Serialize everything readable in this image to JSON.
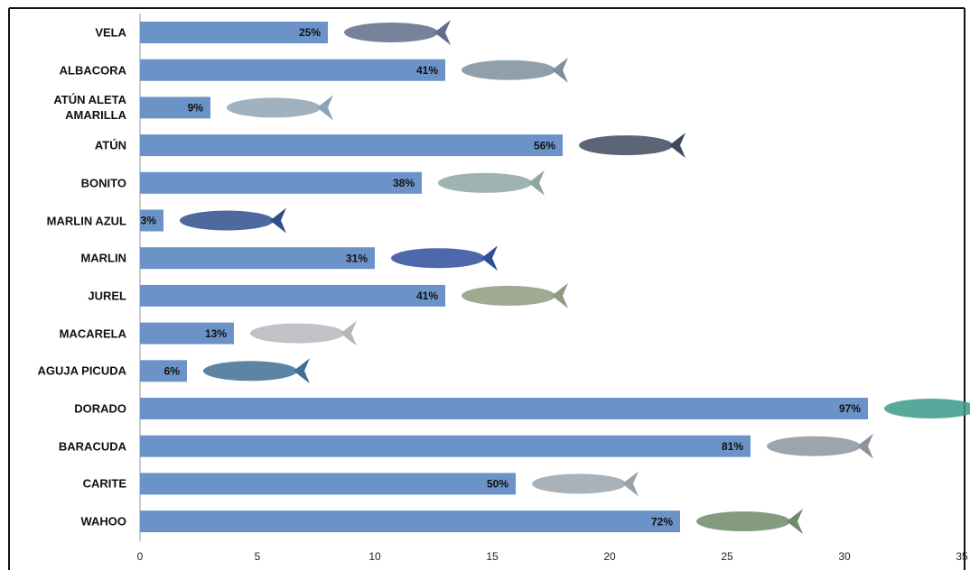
{
  "chart_data": {
    "type": "hbar",
    "categories": [
      "VELA",
      "ALBACORA",
      "ATÚN ALETA AMARILLA",
      "ATÚN",
      "BONITO",
      "MARLIN AZUL",
      "MARLIN",
      "JUREL",
      "MACARELA",
      "AGUJA PICUDA",
      "DORADO",
      "BARACUDA",
      "CARITE",
      "WAHOO"
    ],
    "values": [
      8,
      13,
      3,
      18,
      12,
      1,
      10,
      13,
      4,
      2,
      31,
      26,
      16,
      23
    ],
    "percent_labels": [
      "25%",
      "41%",
      "9%",
      "56%",
      "38%",
      "3%",
      "31%",
      "41%",
      "13%",
      "6%",
      "97%",
      "81%",
      "50%",
      "72%"
    ],
    "color": "#6b93c8",
    "xlim": [
      0,
      35
    ],
    "xticks": [
      0,
      5,
      10,
      15,
      20,
      25,
      30,
      35
    ],
    "grid": false
  }
}
